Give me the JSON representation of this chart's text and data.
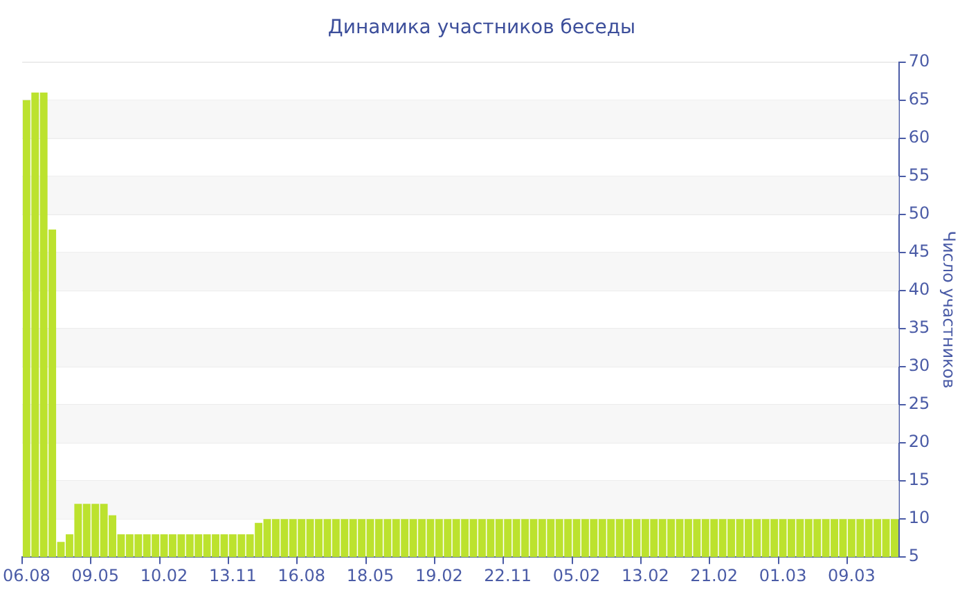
{
  "chart_data": {
    "type": "bar",
    "title": "Динамика участников беседы",
    "ylabel": "Число участников",
    "categories": [
      "06.08",
      null,
      null,
      null,
      null,
      null,
      null,
      null,
      "09.05",
      null,
      null,
      null,
      null,
      null,
      null,
      null,
      "10.02",
      null,
      null,
      null,
      null,
      null,
      null,
      null,
      "13.11",
      null,
      null,
      null,
      null,
      null,
      null,
      null,
      "16.08",
      null,
      null,
      null,
      null,
      null,
      null,
      null,
      "18.05",
      null,
      null,
      null,
      null,
      null,
      null,
      null,
      "19.02",
      null,
      null,
      null,
      null,
      null,
      null,
      null,
      "22.11",
      null,
      null,
      null,
      null,
      null,
      null,
      null,
      "05.02",
      null,
      null,
      null,
      null,
      null,
      null,
      null,
      "13.02",
      null,
      null,
      null,
      null,
      null,
      null,
      null,
      "21.02",
      null,
      null,
      null,
      null,
      null,
      null,
      null,
      "01.03",
      null,
      null,
      null,
      null,
      null,
      null,
      null,
      "09.03",
      null,
      null,
      null,
      null,
      null
    ],
    "values": [
      65,
      66,
      66,
      48,
      7,
      8,
      12,
      12,
      12,
      12,
      10.5,
      8,
      8,
      8,
      8,
      8,
      8,
      8,
      8,
      8,
      8,
      8,
      8,
      8,
      8,
      8,
      8,
      9.5,
      10,
      10,
      10,
      10,
      10,
      10,
      10,
      10,
      10,
      10,
      10,
      10,
      10,
      10,
      10,
      10,
      10,
      10,
      10,
      10,
      10,
      10,
      10,
      10,
      10,
      10,
      10,
      10,
      10,
      10,
      10,
      10,
      10,
      10,
      10,
      10,
      10,
      10,
      10,
      10,
      10,
      10,
      10,
      10,
      10,
      10,
      10,
      10,
      10,
      10,
      10,
      10,
      10,
      10,
      10,
      10,
      10,
      10,
      10,
      10,
      10,
      10,
      10,
      10,
      10,
      10,
      10,
      10,
      10,
      10,
      10,
      10,
      10,
      10
    ],
    "color": "#bce22e",
    "ylim": [
      5,
      70
    ],
    "yticks": [
      5,
      10,
      15,
      20,
      25,
      30,
      35,
      40,
      45,
      50,
      55,
      60,
      65,
      70
    ],
    "grid": "y"
  }
}
